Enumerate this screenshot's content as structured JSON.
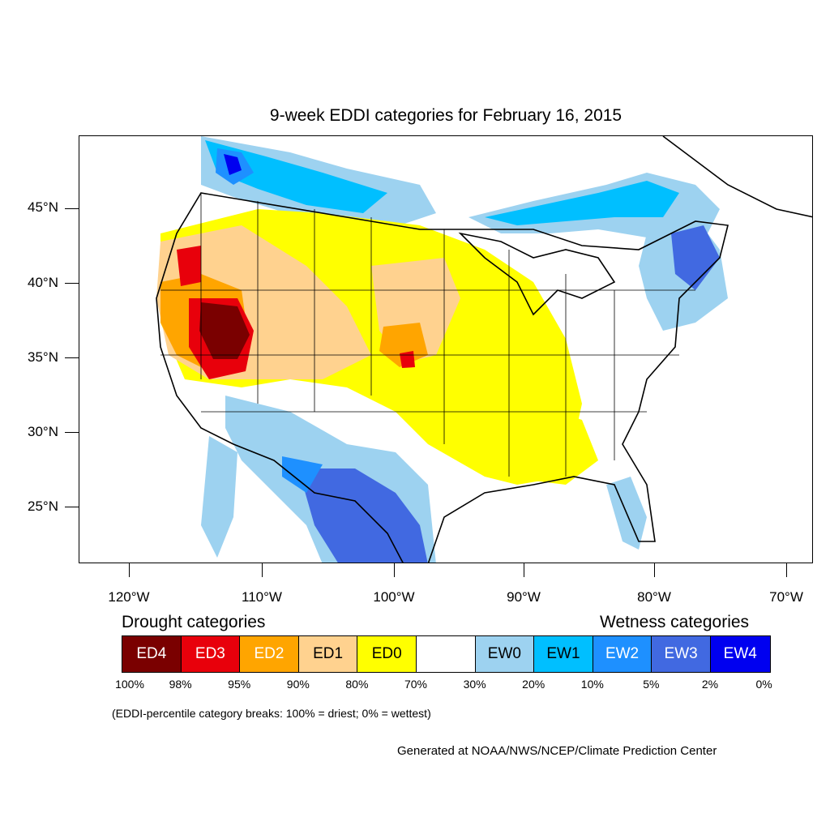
{
  "title": "9-week EDDI categories for February 16, 2015",
  "lat_labels": [
    "45°N",
    "40°N",
    "35°N",
    "30°N",
    "25°N"
  ],
  "lon_labels": [
    "120°W",
    "110°W",
    "100°W",
    "90°W",
    "80°W",
    "70°W"
  ],
  "legend": {
    "drought_heading": "Drought categories",
    "wetness_heading": "Wetness categories",
    "categories": [
      {
        "label": "ED4",
        "color": "#7a0000",
        "text_color": "#ffffff"
      },
      {
        "label": "ED3",
        "color": "#e8000b",
        "text_color": "#ffffff"
      },
      {
        "label": "ED2",
        "color": "#ffa500",
        "text_color": "#ffffff"
      },
      {
        "label": "ED1",
        "color": "#ffd28f",
        "text_color": "#000000"
      },
      {
        "label": "ED0",
        "color": "#ffff00",
        "text_color": "#000000"
      },
      {
        "label": "",
        "color": "#ffffff",
        "text_color": "#000000"
      },
      {
        "label": "EW0",
        "color": "#9dd2f0",
        "text_color": "#000000"
      },
      {
        "label": "EW1",
        "color": "#00bfff",
        "text_color": "#000000"
      },
      {
        "label": "EW2",
        "color": "#1e90ff",
        "text_color": "#ffffff"
      },
      {
        "label": "EW3",
        "color": "#4169e1",
        "text_color": "#ffffff"
      },
      {
        "label": "EW4",
        "color": "#0000f0",
        "text_color": "#ffffff"
      }
    ],
    "percentiles": [
      "100%",
      "98%",
      "95%",
      "90%",
      "80%",
      "70%",
      "30%",
      "20%",
      "10%",
      "5%",
      "2%",
      "0%"
    ]
  },
  "note": "(EDDI-percentile category breaks: 100% = driest; 0% = wettest)",
  "credit": "Generated at NOAA/NWS/NCEP/Climate Prediction Center"
}
